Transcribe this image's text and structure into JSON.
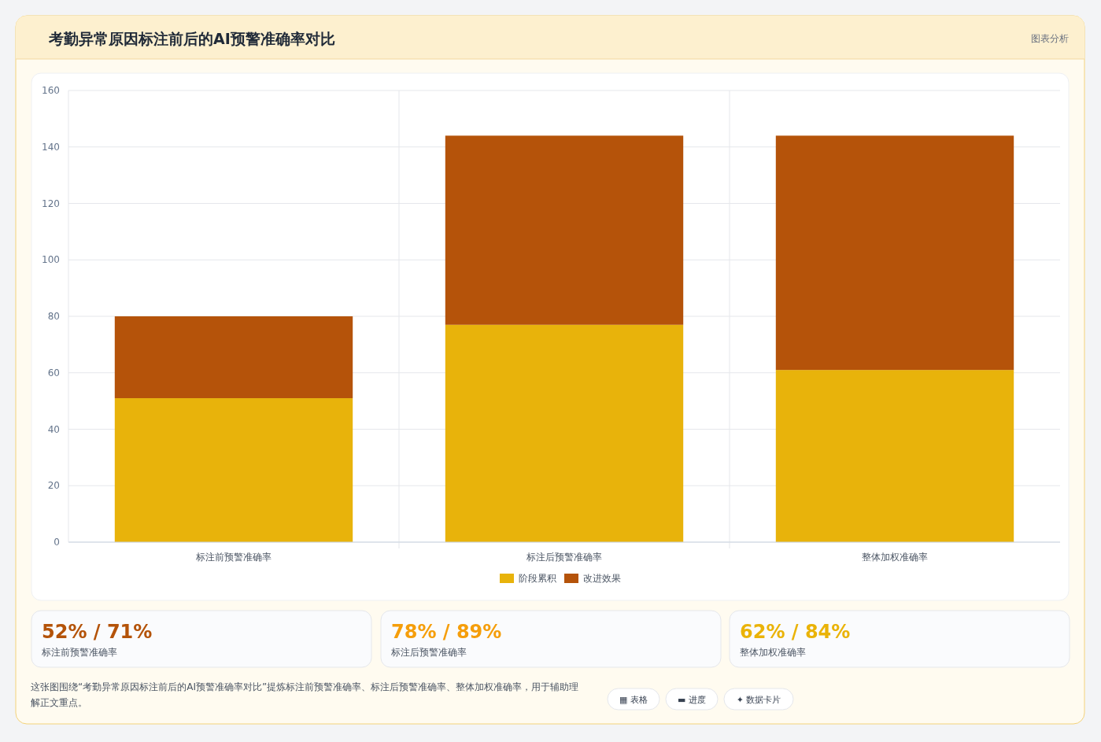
{
  "chart_data": {
    "type": "bar",
    "title": "考勤异常原因标注前后的AI预警准确率对比",
    "stacked": true,
    "grid": true,
    "legend": "bottom",
    "categories": [
      "标注前预警准确率",
      "标注后预警准确率",
      "整体加权准确率"
    ],
    "series": [
      {
        "name": "阶段累积",
        "color": "#e8b30b",
        "values": [
          51,
          77,
          61
        ]
      },
      {
        "name": "改进效果",
        "color": "#b5530a",
        "values": [
          29,
          67,
          83
        ]
      }
    ],
    "ylim": [
      0,
      160
    ],
    "yticks": [
      0,
      20,
      40,
      60,
      80,
      100,
      120,
      140,
      160
    ],
    "annotations": [
      "图表分析",
      "52% / 71%",
      "标注前预警准确率",
      "78% / 89%",
      "标注后预警准确率",
      "62% / 84%",
      "整体加权准确率",
      "这张图围绕“考勤异常原因标注前后的AI预警准确率对比”提炼标注前预警准确率、标注后预警准确率、整体加权准确率，用于辅助理解正文重点。",
      "▦ 表格",
      "▬ 进度",
      "✦ 数据卡片"
    ]
  }
}
